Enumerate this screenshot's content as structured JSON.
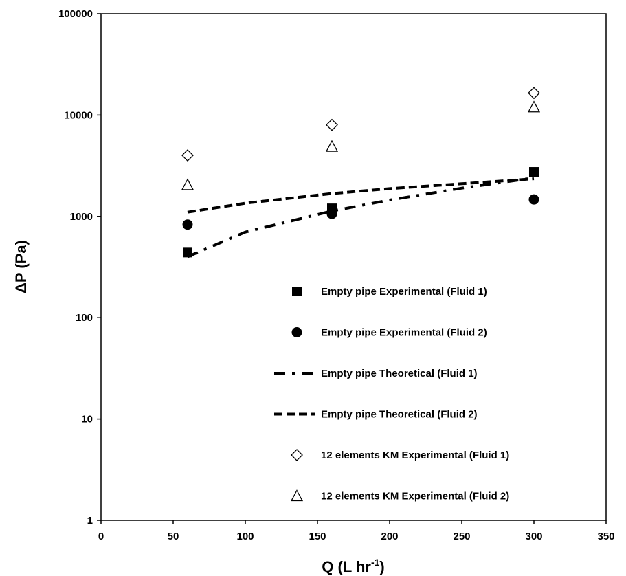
{
  "chart_data": {
    "type": "scatter",
    "title": "",
    "xlabel": "Q",
    "xlabel_unit_base": "L hr",
    "xlabel_unit_exp": "-1",
    "ylabel": "ΔP (Pa)",
    "xlim": [
      0,
      350
    ],
    "ylim": [
      1,
      100000
    ],
    "yscale": "log",
    "grid": false,
    "legend_position": "bottom-right",
    "x_ticks": [
      "0",
      "50",
      "100",
      "150",
      "200",
      "250",
      "300",
      "350"
    ],
    "y_ticks": [
      "1",
      "10",
      "100",
      "1000",
      "10000",
      "100000"
    ],
    "series": [
      {
        "name": "Empty pipe Experimental (Fluid 1)",
        "marker": "square-filled",
        "style": "marker",
        "color": "#000000",
        "x": [
          60,
          160,
          300
        ],
        "y": [
          440,
          1200,
          2750
        ]
      },
      {
        "name": "Empty pipe Experimental (Fluid 2)",
        "marker": "circle-filled",
        "style": "marker",
        "color": "#000000",
        "x": [
          60,
          160,
          300
        ],
        "y": [
          830,
          1060,
          1470
        ]
      },
      {
        "name": "Empty pipe Theoretical (Fluid 1)",
        "marker": "none",
        "style": "dash-dot",
        "color": "#000000",
        "x": [
          60,
          100,
          160,
          200,
          250,
          300
        ],
        "y": [
          400,
          700,
          1130,
          1450,
          1900,
          2400
        ]
      },
      {
        "name": "Empty pipe Theoretical (Fluid 2)",
        "marker": "none",
        "style": "dash",
        "color": "#000000",
        "x": [
          60,
          100,
          160,
          200,
          250,
          300
        ],
        "y": [
          1100,
          1350,
          1680,
          1880,
          2100,
          2350
        ]
      },
      {
        "name": "12 elements KM Experimental (Fluid 1)",
        "marker": "diamond-open",
        "style": "marker",
        "color": "#000000",
        "x": [
          60,
          160,
          300
        ],
        "y": [
          4000,
          8000,
          16500
        ]
      },
      {
        "name": "12 elements KM Experimental (Fluid 2)",
        "marker": "triangle-open",
        "style": "marker",
        "color": "#000000",
        "x": [
          60,
          160,
          300
        ],
        "y": [
          2050,
          4900,
          12000
        ]
      }
    ]
  }
}
